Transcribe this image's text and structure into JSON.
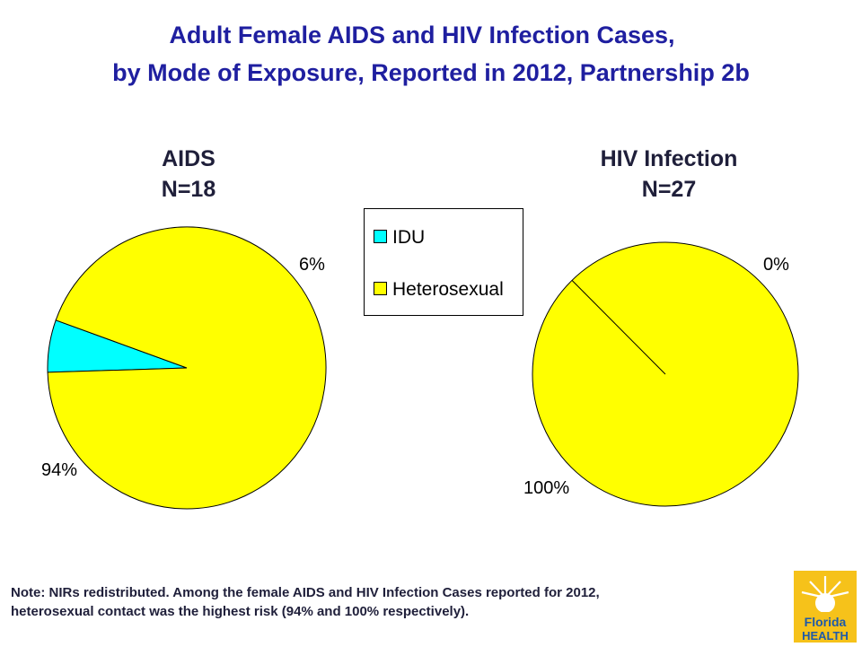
{
  "title": {
    "line1": "Adult Female AIDS and HIV Infection Cases,",
    "line2": "by Mode of Exposure, Reported in 2012, Partnership 2b"
  },
  "chart_data": [
    {
      "type": "pie",
      "title": "AIDS",
      "subtitle": "N=18",
      "slices": [
        {
          "label": "IDU",
          "value": 6,
          "display": "6%",
          "color": "#00ffff"
        },
        {
          "label": "Heterosexual",
          "value": 94,
          "display": "94%",
          "color": "#ffff00"
        }
      ]
    },
    {
      "type": "pie",
      "title": "HIV Infection",
      "subtitle": "N=27",
      "slices": [
        {
          "label": "IDU",
          "value": 0,
          "display": "0%",
          "color": "#00ffff"
        },
        {
          "label": "Heterosexual",
          "value": 100,
          "display": "100%",
          "color": "#ffff00"
        }
      ]
    }
  ],
  "legend": {
    "items": [
      {
        "label": "IDU",
        "color": "#00ffff"
      },
      {
        "label": "Heterosexual",
        "color": "#ffff00"
      }
    ]
  },
  "note": {
    "line1": "Note:  NIRs redistributed.  Among the female AIDS and HIV Infection Cases reported for 2012,",
    "line2": "heterosexual contact was the highest risk (94% and 100% respectively)."
  },
  "logo": {
    "line1": "Florida",
    "line2": "HEALTH",
    "icon": "sun-logo-icon"
  }
}
